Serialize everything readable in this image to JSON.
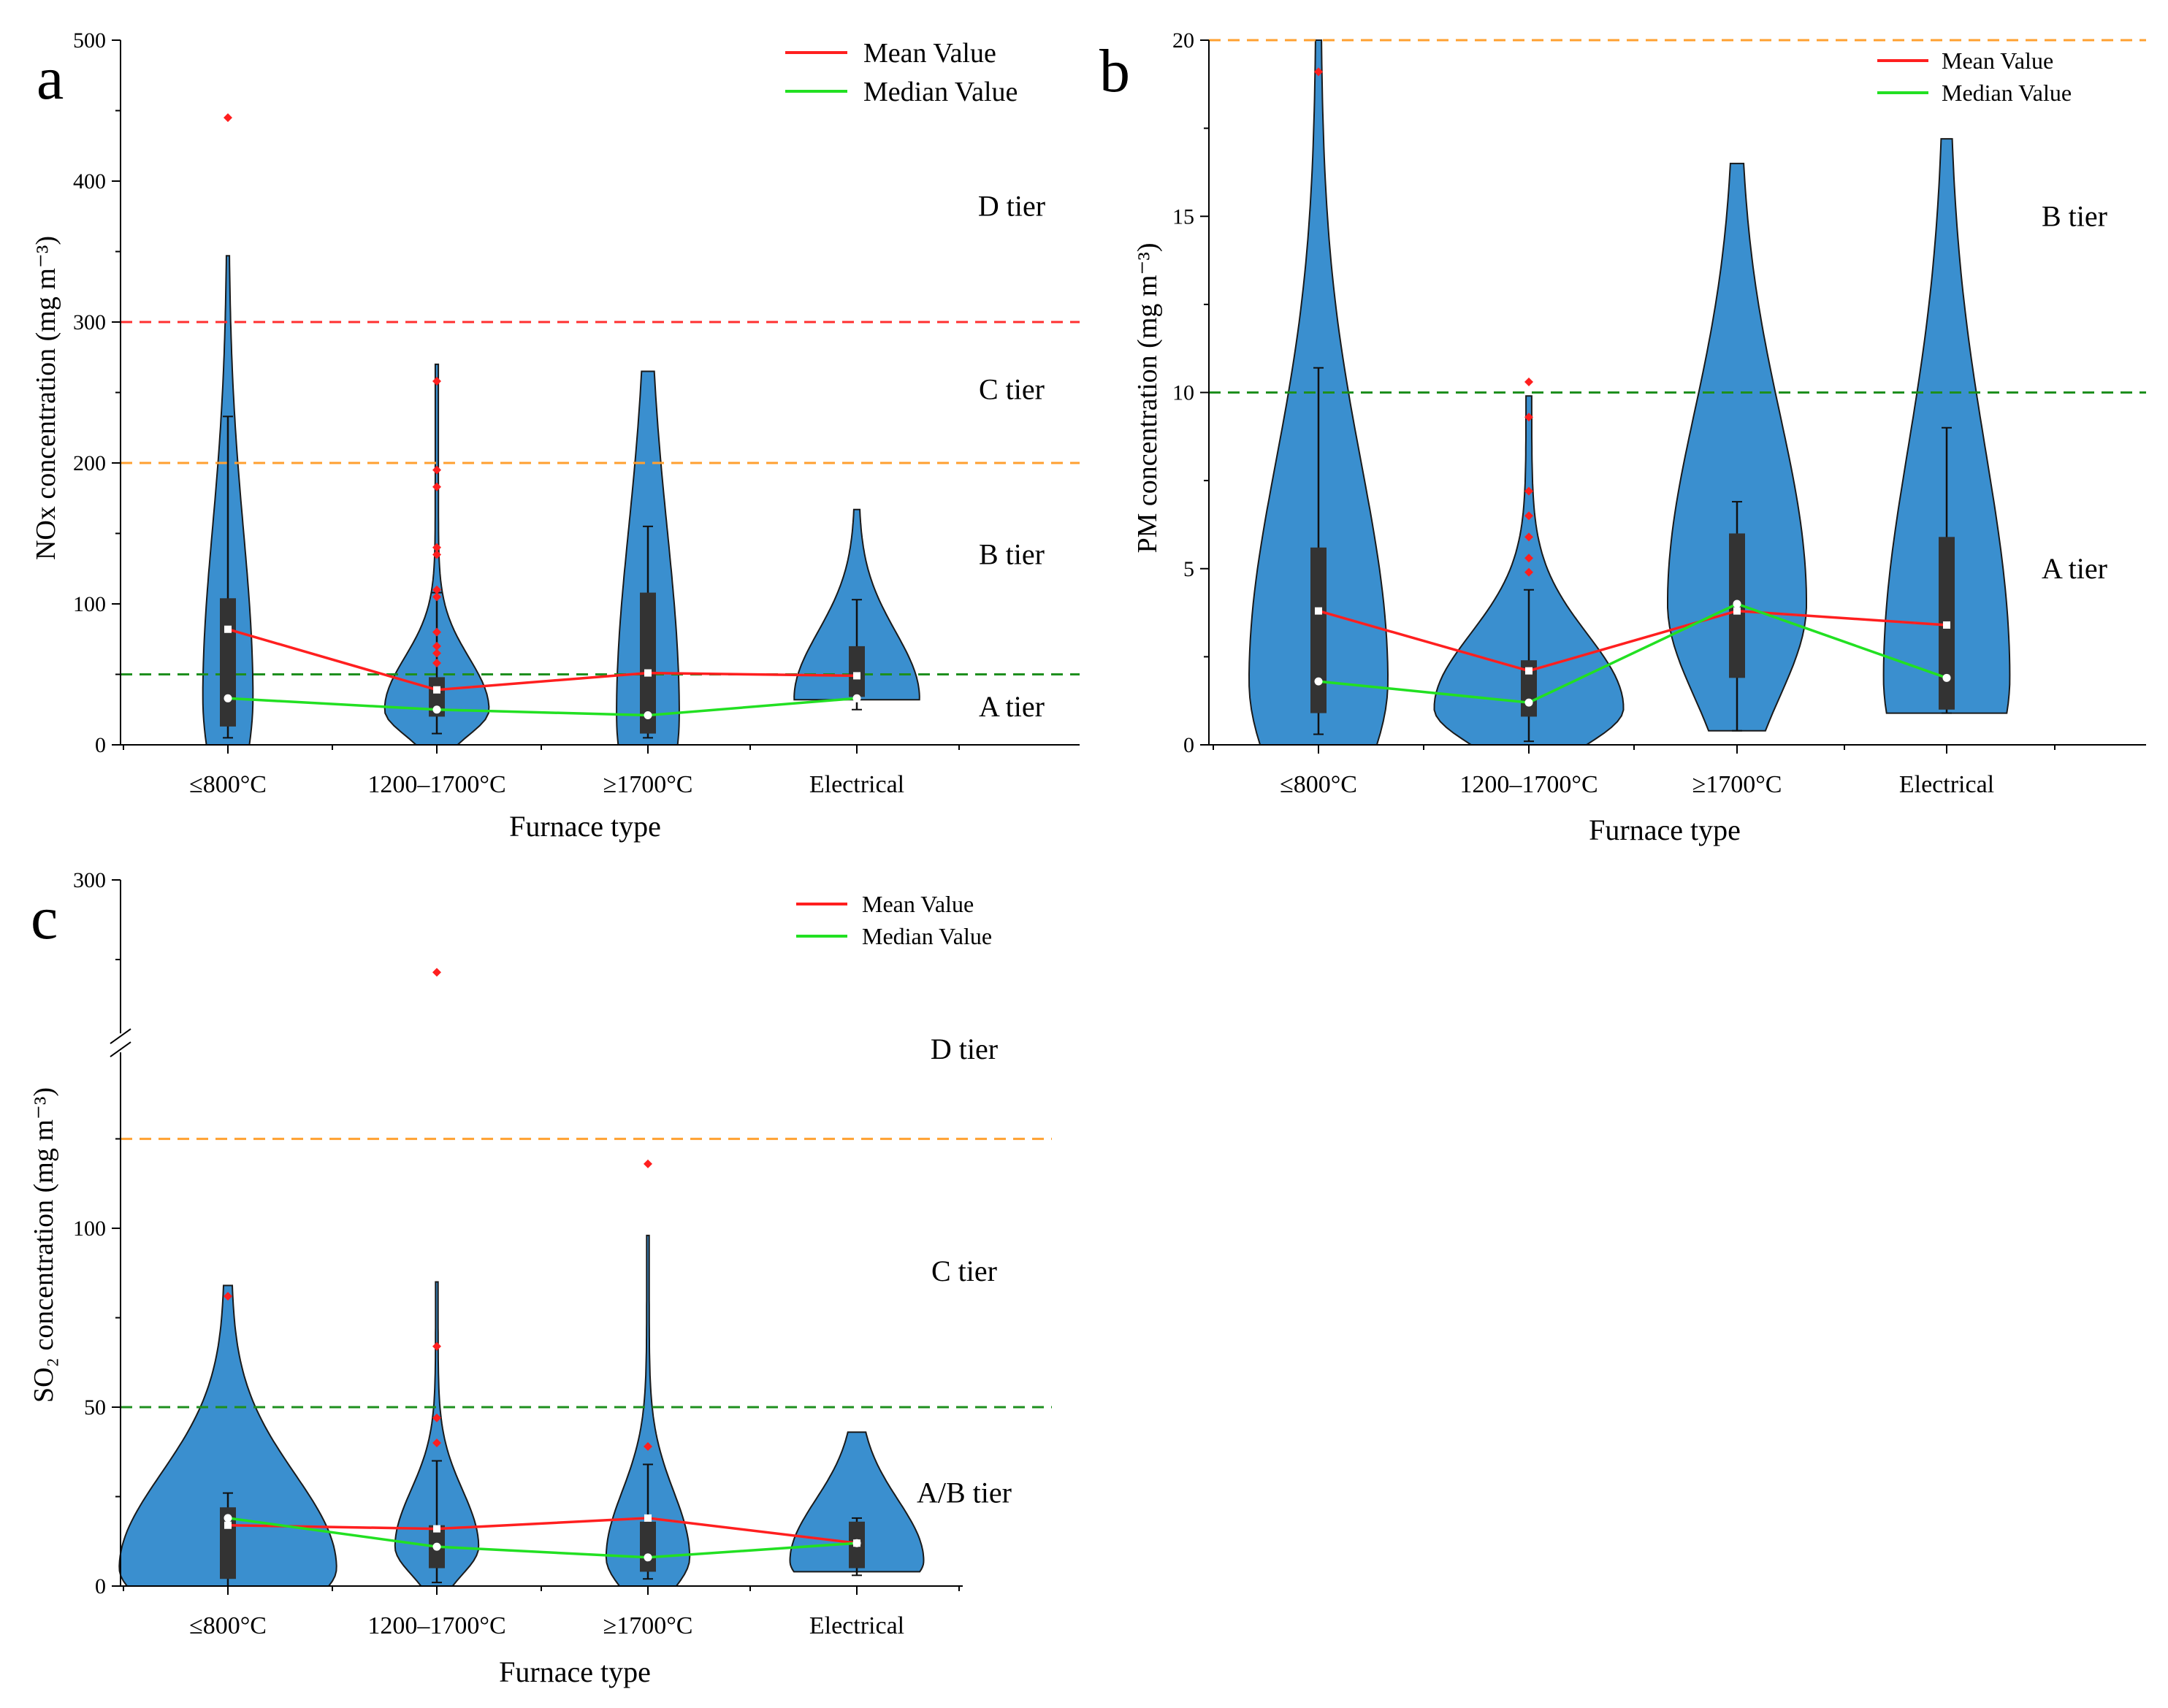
{
  "figure": {
    "legend": {
      "mean": "Mean Value",
      "median": "Median Value"
    },
    "colors": {
      "violin": "#3a8fcf",
      "box": "#333333",
      "mean": "#ff1f1f",
      "median": "#22e022",
      "outlier": "#ff1f1f",
      "limit_red": "#ff3030",
      "limit_orange": "#ffa030",
      "limit_green": "#1e8f1e"
    }
  },
  "chart_data": [
    {
      "panel": "a",
      "type": "violin",
      "xlabel": "Furnace type",
      "ylabel": "NOx concentration (mg m⁻³)",
      "ylim": [
        0,
        500
      ],
      "yticks": [
        0,
        100,
        200,
        300,
        400,
        500
      ],
      "categories": [
        "≤800°C",
        "1200–1700°C",
        "≥1700°C",
        "Electrical"
      ],
      "mean": [
        82,
        39,
        51,
        49
      ],
      "median": [
        33,
        25,
        21,
        33
      ],
      "box": [
        [
          13,
          104
        ],
        [
          20,
          48
        ],
        [
          8,
          108
        ],
        [
          34,
          70
        ]
      ],
      "whisker": [
        [
          5,
          233
        ],
        [
          8,
          108
        ],
        [
          5,
          155
        ],
        [
          25,
          103
        ]
      ],
      "violin_range": [
        [
          0,
          347
        ],
        [
          0,
          270
        ],
        [
          0,
          265
        ],
        [
          32,
          167
        ]
      ],
      "violin_width": [
        0.12,
        0.25,
        0.15,
        0.3
      ],
      "outliers": [
        [
          445
        ],
        [
          258,
          195,
          183,
          140,
          135,
          110,
          105,
          80,
          70,
          65,
          58
        ],
        [],
        []
      ],
      "limits": [
        {
          "value": 300,
          "color": "red"
        },
        {
          "value": 200,
          "color": "orange"
        },
        {
          "value": 50,
          "color": "green"
        }
      ],
      "tiers": [
        {
          "label": "D tier",
          "y": 382
        },
        {
          "label": "C tier",
          "y": 252
        },
        {
          "label": "B tier",
          "y": 135
        },
        {
          "label": "A tier",
          "y": 27
        }
      ]
    },
    {
      "panel": "b",
      "type": "violin",
      "xlabel": "Furnace type",
      "ylabel": "PM concentration (mg m⁻³)",
      "ylim": [
        0,
        20
      ],
      "yticks": [
        0,
        5,
        10,
        15,
        20
      ],
      "categories": [
        "≤800°C",
        "1200–1700°C",
        "≥1700°C",
        "Electrical"
      ],
      "mean": [
        3.8,
        2.1,
        3.8,
        3.4
      ],
      "median": [
        1.8,
        1.2,
        4.0,
        1.9
      ],
      "box": [
        [
          0.9,
          5.6
        ],
        [
          0.8,
          2.4
        ],
        [
          1.9,
          6.0
        ],
        [
          1.0,
          5.9
        ]
      ],
      "whisker": [
        [
          0.3,
          10.7
        ],
        [
          0.1,
          4.4
        ],
        [
          0.4,
          6.9
        ],
        [
          0.9,
          9.0
        ]
      ],
      "violin_range": [
        [
          0,
          20
        ],
        [
          0,
          9.9
        ],
        [
          0.4,
          16.5
        ],
        [
          0.9,
          17.2
        ]
      ],
      "violin_width": [
        0.33,
        0.45,
        0.33,
        0.3
      ],
      "outliers": [
        [
          19.1
        ],
        [
          10.3,
          9.3,
          7.2,
          6.5,
          5.9,
          5.3,
          4.9
        ],
        [],
        []
      ],
      "limits": [
        {
          "value": 20,
          "color": "orange"
        },
        {
          "value": 10,
          "color": "green"
        }
      ],
      "tiers": [
        {
          "label": "B tier",
          "y": 15
        },
        {
          "label": "A tier",
          "y": 5
        }
      ]
    },
    {
      "panel": "c",
      "type": "violin",
      "xlabel": "Furnace type",
      "ylabel": "SO₂ concentration (mg m⁻³)",
      "ylim": [
        0,
        300
      ],
      "yticks": [
        0,
        50,
        100,
        300
      ],
      "axis_break": [
        150,
        250
      ],
      "categories": [
        "≤800°C",
        "1200–1700°C",
        "≥1700°C",
        "Electrical"
      ],
      "mean": [
        17,
        16,
        19,
        12
      ],
      "median": [
        19,
        11,
        8,
        12
      ],
      "box": [
        [
          2,
          22
        ],
        [
          5,
          17
        ],
        [
          4,
          18
        ],
        [
          5,
          18
        ]
      ],
      "whisker": [
        [
          0,
          26
        ],
        [
          1,
          35
        ],
        [
          2,
          34
        ],
        [
          3,
          19
        ]
      ],
      "violin_range": [
        [
          0,
          84
        ],
        [
          0,
          85
        ],
        [
          0,
          98
        ],
        [
          4,
          43
        ]
      ],
      "violin_width": [
        0.52,
        0.2,
        0.2,
        0.32
      ],
      "outliers": [
        [
          81
        ],
        [
          271,
          67,
          47,
          40
        ],
        [
          118,
          39
        ],
        []
      ],
      "limits": [
        {
          "value": 125,
          "color": "orange"
        },
        {
          "value": 50,
          "color": "green"
        }
      ],
      "tiers": [
        {
          "label": "D tier",
          "y": 153
        },
        {
          "label": "C tier",
          "y": 88
        },
        {
          "label": "A/B tier",
          "y": 26
        }
      ]
    }
  ]
}
